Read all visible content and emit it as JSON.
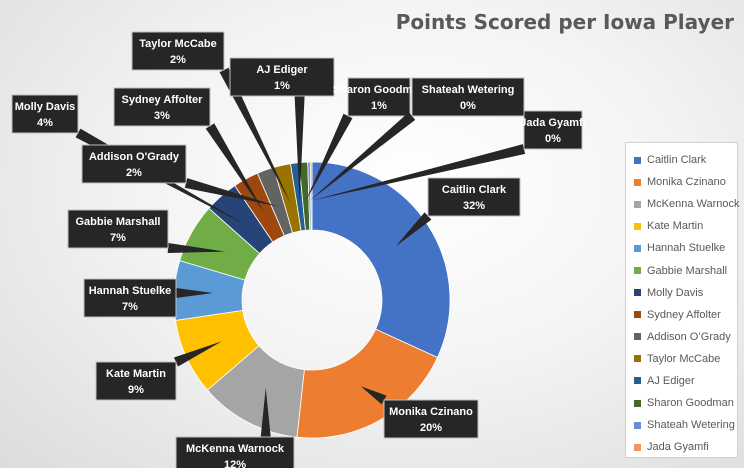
{
  "chart_data": {
    "type": "pie",
    "style": "doughnut",
    "title": "Points Scored per Iowa Player",
    "legend_position": "right",
    "categories": [
      "Caitlin Clark",
      "Monika Czinano",
      "McKenna Warnock",
      "Kate Martin",
      "Hannah Stuelke",
      "Gabbie Marshall",
      "Molly Davis",
      "Sydney Affolter",
      "Addison O'Grady",
      "Taylor McCabe",
      "AJ Ediger",
      "Sharon Goodman",
      "Shateah Wetering",
      "Jada Gyamfi"
    ],
    "legend_labels": [
      "Caitlin Clark",
      "Monika Czinano",
      "McKenna Warnock",
      "Kate Martin",
      "Hannah Stuelke",
      "Gabbie Marshall",
      "Molly Davis",
      "Sydney Affolter",
      "Addison O’Grady",
      "Taylor McCabe",
      "AJ Ediger",
      "Sharon Goodman",
      "Shateah Wetering",
      "Jada Gyamfi"
    ],
    "values": [
      32,
      20,
      12,
      9,
      7,
      7,
      4,
      3,
      2,
      2,
      1,
      1,
      0.3,
      0.2
    ],
    "data_labels": [
      "32%",
      "20%",
      "12%",
      "9%",
      "7%",
      "7%",
      "4%",
      "3%",
      "2%",
      "2%",
      "1%",
      "1%",
      "0%",
      "0%"
    ],
    "colors": [
      "#4472C4",
      "#ED7D31",
      "#A5A5A5",
      "#FFC000",
      "#5B9BD5",
      "#70AD47",
      "#264478",
      "#9E480E",
      "#636363",
      "#997300",
      "#255E91",
      "#43682B",
      "#698ED0",
      "#F1975A"
    ]
  }
}
